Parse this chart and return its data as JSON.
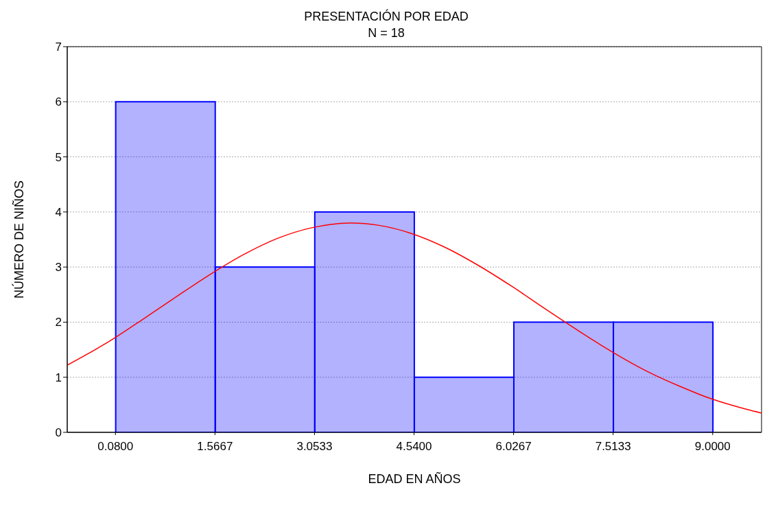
{
  "chart_data": {
    "type": "histogram",
    "title": "PRESENTACIÓN POR EDAD",
    "subtitle": "N = 18",
    "xlabel": "EDAD EN AÑOS",
    "ylabel": "NÚMERO DE NIÑOS",
    "bins": [
      0.08,
      1.5667,
      3.0533,
      4.54,
      6.0267,
      7.5133,
      9.0
    ],
    "values": [
      6,
      3,
      4,
      1,
      2,
      2
    ],
    "color": "#0000ff",
    "series": [
      {
        "type": "line",
        "color": "#ff0000",
        "x": [
          -0.64,
          0,
          0.5,
          1,
          1.5,
          2,
          2.5,
          3,
          3.61,
          4,
          4.5,
          5,
          5.5,
          6,
          6.5,
          7,
          7.5,
          8,
          8.5,
          9,
          9.5,
          9.73
        ],
        "values": [
          1.22,
          1.66,
          2.06,
          2.47,
          2.87,
          3.23,
          3.52,
          3.71,
          3.8,
          3.76,
          3.61,
          3.36,
          3.03,
          2.65,
          2.24,
          1.84,
          1.46,
          1.12,
          0.84,
          0.6,
          0.42,
          0.35
        ]
      }
    ],
    "xlim": [
      -0.64,
      9.73
    ],
    "xticks": [
      {
        "value": 0.08,
        "label": "0.0800"
      },
      {
        "value": 1.5667,
        "label": "1.5667"
      },
      {
        "value": 3.0533,
        "label": "3.0533"
      },
      {
        "value": 4.54,
        "label": "4.5400"
      },
      {
        "value": 6.0267,
        "label": "6.0267"
      },
      {
        "value": 7.5133,
        "label": "7.5133"
      },
      {
        "value": 9.0,
        "label": "9.0000"
      }
    ],
    "ylim": [
      0,
      7
    ],
    "yticks": [
      0,
      1,
      2,
      3,
      4,
      5,
      6,
      7
    ],
    "grid": "y",
    "marker": "none",
    "line_style": "solid"
  }
}
